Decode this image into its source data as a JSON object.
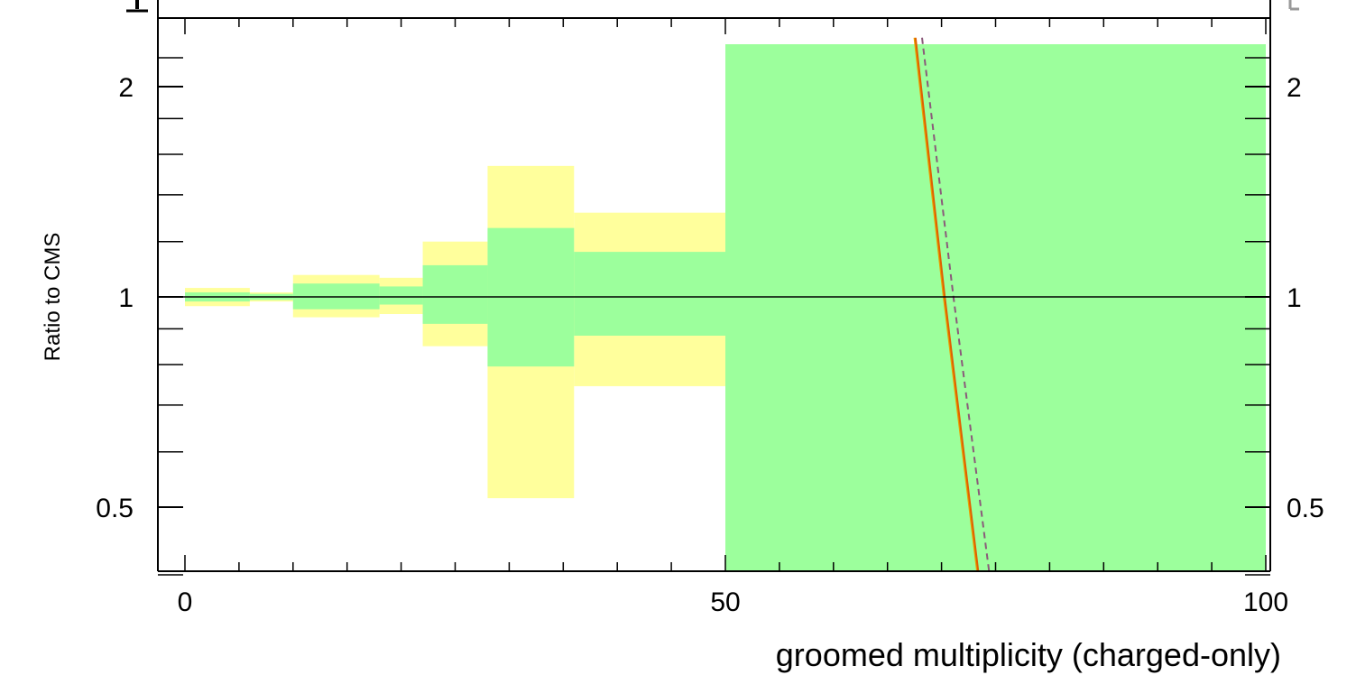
{
  "chart_data": {
    "type": "line",
    "title": "",
    "xlabel": "groomed multiplicity (charged-only)",
    "ylabel": "Ratio to CMS",
    "xlim": [
      -2.5,
      100.5
    ],
    "ylim": [
      0.35,
      2.3
    ],
    "y_scale": "log",
    "grid": false,
    "reference_line": 1,
    "x_ticks_major": [
      0,
      50,
      100
    ],
    "x_tick_labels": [
      "0",
      "50",
      "100"
    ],
    "y_ticks_major": [
      0.5,
      1,
      2
    ],
    "y_tick_labels": [
      "0.5",
      "1",
      "2"
    ],
    "uncertainty_bands": [
      {
        "x_low": 0,
        "x_high": 6,
        "stat": [
          0.985,
          1.015
        ],
        "total": [
          0.97,
          1.03
        ]
      },
      {
        "x_low": 6,
        "x_high": 10,
        "stat": [
          0.99,
          1.01
        ],
        "total": [
          0.985,
          1.015
        ]
      },
      {
        "x_low": 10,
        "x_high": 18,
        "stat": [
          0.96,
          1.045
        ],
        "total": [
          0.935,
          1.075
        ]
      },
      {
        "x_low": 18,
        "x_high": 22,
        "stat": [
          0.975,
          1.035
        ],
        "total": [
          0.945,
          1.065
        ]
      },
      {
        "x_low": 22,
        "x_high": 28,
        "stat": [
          0.915,
          1.11
        ],
        "total": [
          0.85,
          1.2
        ]
      },
      {
        "x_low": 28,
        "x_high": 36,
        "stat": [
          0.795,
          1.255
        ],
        "total": [
          0.515,
          1.54
        ]
      },
      {
        "x_low": 36,
        "x_high": 50,
        "stat": [
          0.88,
          1.16
        ],
        "total": [
          0.745,
          1.32
        ]
      },
      {
        "x_low": 50,
        "x_high": 100,
        "stat": [
          0.35,
          2.3
        ],
        "total": [
          0.35,
          2.3
        ]
      }
    ],
    "series": [
      {
        "color": "#e8a000",
        "dash": "solid",
        "x": [
          67.5,
          70.2,
          73.3
        ],
        "y": [
          2.35,
          1.0,
          0.35
        ]
      },
      {
        "color": "#e06000",
        "dash": "solid",
        "x": [
          67.6,
          70.3,
          73.4
        ],
        "y": [
          2.35,
          1.0,
          0.35
        ]
      },
      {
        "color": "#8b5a7a",
        "dash": "dashed",
        "x": [
          68.2,
          71.1,
          74.4
        ],
        "y": [
          2.35,
          1.0,
          0.35
        ]
      },
      {
        "color": "#f0c000",
        "dash": "solid",
        "x": [
          74.5,
          74.6
        ],
        "y": [
          0.37,
          0.35
        ]
      }
    ],
    "colors": {
      "stat_band": "#9cff9c",
      "total_band": "#ffff9c",
      "axes": "#000000"
    }
  }
}
